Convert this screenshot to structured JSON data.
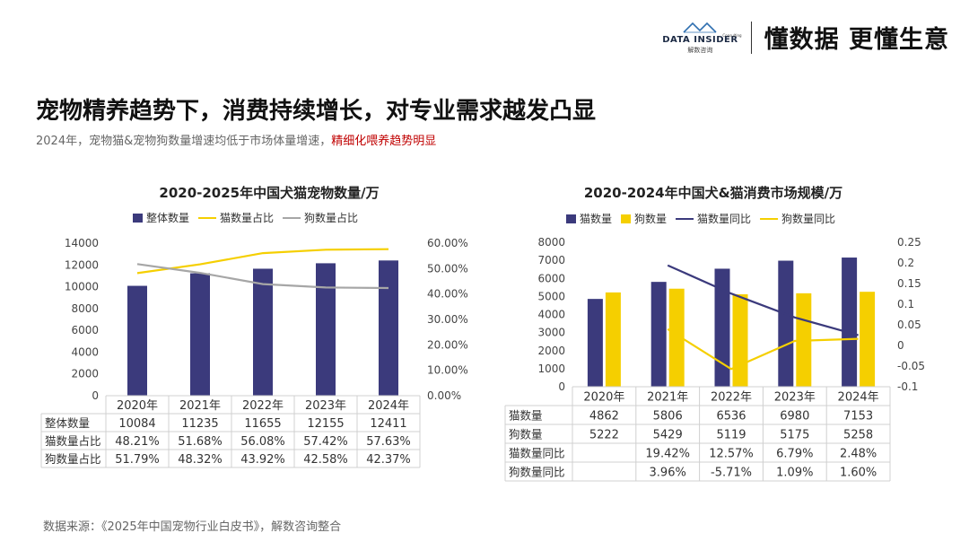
{
  "header": {
    "logo_text": "DATA INSIDER",
    "logo_sub": "解数咨询",
    "logo_small": "Consulting",
    "slogan": "懂数据 更懂生意"
  },
  "title": "宠物精养趋势下，消费持续增长，对专业需求越发凸显",
  "subtitle": {
    "normal": "2024年，宠物猫&宠物狗数量增速均低于市场体量增速，",
    "highlight": "精细化喂养趋势明显"
  },
  "source": "数据来源：《2025年中国宠物行业白皮书》，解数咨询整合",
  "colors": {
    "navy": "#3b3a7c",
    "yellow": "#f5cf00",
    "gray": "#a6a6a6"
  },
  "chart_data": [
    {
      "type": "bar+line",
      "title": "2020-2025年中国犬猫宠物数量/万",
      "categories": [
        "2020年",
        "2021年",
        "2022年",
        "2023年",
        "2024年"
      ],
      "legend": [
        "整体数量",
        "猫数量占比",
        "狗数量占比"
      ],
      "series": [
        {
          "name": "整体数量",
          "type": "bar",
          "axis": "left",
          "values": [
            10084,
            11235,
            11655,
            12155,
            12411
          ]
        },
        {
          "name": "猫数量占比",
          "type": "line",
          "axis": "right",
          "values": [
            48.21,
            51.68,
            56.08,
            57.42,
            57.63
          ]
        },
        {
          "name": "狗数量占比",
          "type": "line",
          "axis": "right",
          "values": [
            51.79,
            48.32,
            43.92,
            42.58,
            42.37
          ]
        }
      ],
      "y_left": {
        "min": 0,
        "max": 14000,
        "ticks": [
          "0",
          "2000",
          "4000",
          "6000",
          "8000",
          "10000",
          "12000",
          "14000"
        ]
      },
      "y_right": {
        "min": 0,
        "max": 60,
        "ticks": [
          "0.00%",
          "10.00%",
          "20.00%",
          "30.00%",
          "40.00%",
          "50.00%",
          "60.00%"
        ]
      },
      "table": {
        "rows": [
          {
            "label": "整体数量",
            "cells": [
              "10084",
              "11235",
              "11655",
              "12155",
              "12411"
            ]
          },
          {
            "label": "猫数量占比",
            "cells": [
              "48.21%",
              "51.68%",
              "56.08%",
              "57.42%",
              "57.63%"
            ]
          },
          {
            "label": "狗数量占比",
            "cells": [
              "51.79%",
              "48.32%",
              "43.92%",
              "42.58%",
              "42.37%"
            ]
          }
        ]
      }
    },
    {
      "type": "bar+line",
      "title": "2020-2024年中国犬&猫消费市场规模/万",
      "categories": [
        "2020年",
        "2021年",
        "2022年",
        "2023年",
        "2024年"
      ],
      "legend": [
        "猫数量",
        "狗数量",
        "猫数量同比",
        "狗数量同比"
      ],
      "series": [
        {
          "name": "猫数量",
          "type": "bar",
          "axis": "left",
          "values": [
            4862,
            5806,
            6536,
            6980,
            7153
          ]
        },
        {
          "name": "狗数量",
          "type": "bar",
          "axis": "left",
          "values": [
            5222,
            5429,
            5119,
            5175,
            5258
          ]
        },
        {
          "name": "猫数量同比",
          "type": "line",
          "axis": "right",
          "values": [
            null,
            0.1942,
            0.1257,
            0.0679,
            0.0248
          ]
        },
        {
          "name": "狗数量同比",
          "type": "line",
          "axis": "right",
          "values": [
            null,
            0.0396,
            -0.0571,
            0.0109,
            0.016
          ]
        }
      ],
      "y_left": {
        "min": 0,
        "max": 8000,
        "ticks": [
          "0",
          "1000",
          "2000",
          "3000",
          "4000",
          "5000",
          "6000",
          "7000",
          "8000"
        ]
      },
      "y_right": {
        "min": -0.1,
        "max": 0.25,
        "ticks": [
          "-0.1",
          "-0.05",
          "0",
          "0.05",
          "0.1",
          "0.15",
          "0.2",
          "0.25"
        ]
      },
      "table": {
        "rows": [
          {
            "label": "猫数量",
            "cells": [
              "4862",
              "5806",
              "6536",
              "6980",
              "7153"
            ]
          },
          {
            "label": "狗数量",
            "cells": [
              "5222",
              "5429",
              "5119",
              "5175",
              "5258"
            ]
          },
          {
            "label": "猫数量同比",
            "cells": [
              "",
              "19.42%",
              "12.57%",
              "6.79%",
              "2.48%"
            ]
          },
          {
            "label": "狗数量同比",
            "cells": [
              "",
              "3.96%",
              "-5.71%",
              "1.09%",
              "1.60%"
            ]
          }
        ]
      }
    }
  ]
}
